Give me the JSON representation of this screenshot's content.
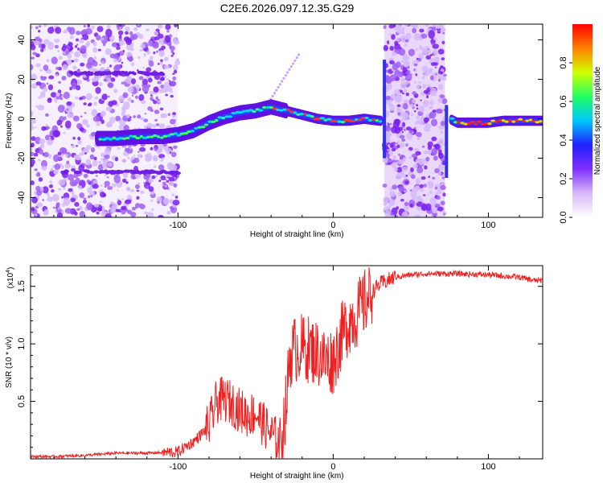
{
  "figure": {
    "title": "C2E6.2026.097.12.35.G29"
  },
  "chart_data": [
    {
      "type": "heatmap",
      "xlabel": "Height of straight line (km)",
      "ylabel": "Frequency (Hz)",
      "xlim": [
        -195,
        135
      ],
      "ylim": [
        -50,
        48
      ],
      "xticks": [
        -100,
        0,
        100
      ],
      "xtick_labels": [
        "-100",
        "0",
        "100"
      ],
      "yticks": [
        -40,
        -20,
        0,
        20,
        40
      ],
      "ytick_labels": [
        "-40",
        "-20",
        "0",
        "20",
        "40"
      ],
      "colorbar": {
        "label": "Normalized spectral amplitude",
        "range": [
          0.0,
          1.0
        ],
        "ticks": [
          0.0,
          0.2,
          0.4,
          0.6,
          0.8
        ],
        "tick_labels": [
          "0.0",
          "0.2",
          "0.4",
          "0.6",
          "0.8"
        ],
        "colors": [
          "#ffffff",
          "#d8b8f8",
          "#8030ff",
          "#2020ff",
          "#00c8ff",
          "#20ff60",
          "#d0ff00",
          "#ff8000",
          "#ff0000"
        ]
      },
      "signal_path": {
        "x": [
          -152,
          -140,
          -125,
          -110,
          -100,
          -90,
          -80,
          -70,
          -60,
          -50,
          -40,
          -30,
          -20,
          -10,
          0,
          10,
          20,
          30,
          75,
          80,
          90,
          100,
          110,
          120,
          135
        ],
        "y": [
          -10,
          -10,
          -9,
          -9,
          -8,
          -6,
          -2,
          1,
          3,
          4,
          6,
          4,
          2,
          0,
          -1,
          -1,
          0,
          -1,
          0,
          -2,
          -2,
          -2,
          -1,
          -1,
          -1
        ]
      },
      "noise_regions": [
        [
          -195,
          -100
        ],
        [
          33,
          72
        ]
      ]
    },
    {
      "type": "line",
      "xlabel": "Height of straight line (km)",
      "ylabel": "SNR (10 * v/v)",
      "y_multiplier": "(x10",
      "y_multiplier_exp": "4",
      "xlim": [
        -195,
        135
      ],
      "ylim": [
        0,
        1.68
      ],
      "xticks": [
        -100,
        0,
        100
      ],
      "xtick_labels": [
        "-100",
        "0",
        "100"
      ],
      "yticks": [
        0.5,
        1.0,
        1.5
      ],
      "ytick_labels": [
        "0.5",
        "1.0",
        "1.5"
      ],
      "line_color": "#f02020",
      "series": [
        {
          "name": "SNR",
          "x": [
            -195,
            -180,
            -160,
            -140,
            -120,
            -100,
            -90,
            -80,
            -75,
            -70,
            -65,
            -60,
            -55,
            -50,
            -45,
            -40,
            -35,
            -33,
            -30,
            -28,
            -25,
            -20,
            -15,
            -10,
            -5,
            0,
            5,
            10,
            15,
            20,
            25,
            30,
            40,
            50,
            60,
            80,
            100,
            110,
            120,
            130,
            135
          ],
          "y": [
            0.02,
            0.02,
            0.03,
            0.05,
            0.05,
            0.06,
            0.15,
            0.28,
            0.5,
            0.52,
            0.48,
            0.42,
            0.38,
            0.4,
            0.3,
            0.22,
            0.15,
            0.2,
            0.5,
            0.9,
            0.95,
            0.97,
            0.95,
            0.92,
            0.85,
            0.85,
            1.05,
            1.2,
            1.25,
            1.35,
            1.45,
            1.52,
            1.58,
            1.6,
            1.61,
            1.61,
            1.6,
            1.59,
            1.58,
            1.55,
            1.55
          ]
        }
      ]
    }
  ]
}
